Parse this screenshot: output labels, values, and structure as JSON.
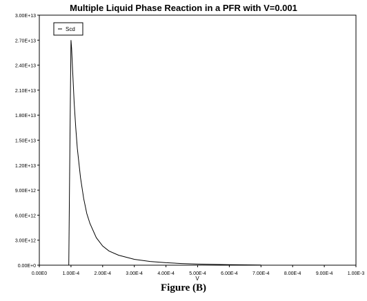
{
  "chart_data": {
    "type": "line",
    "title": "Multiple Liquid Phase Reaction in a PFR with V=0.001",
    "xlabel": "V",
    "ylabel": "",
    "xlim": [
      0,
      0.001
    ],
    "ylim": [
      0,
      30000000000000
    ],
    "x_ticks": [
      "0.00E0",
      "1.00E-4",
      "2.00E-4",
      "3.00E-4",
      "4.00E-4",
      "5.00E-4",
      "6.00E-4",
      "7.00E-4",
      "8.00E-4",
      "9.00E-4",
      "1.00E-3"
    ],
    "y_ticks": [
      "0.00E+0",
      "3.00E+12",
      "6.00E+12",
      "9.00E+12",
      "1.20E+13",
      "1.50E+13",
      "1.80E+13",
      "2.10E+13",
      "2.40E+13",
      "2.70E+13",
      "3.00E+13"
    ],
    "legend": "top-left",
    "grid": false,
    "series": [
      {
        "name": "Scd",
        "color": "#000000",
        "x": [
          9.2e-05,
          9.3e-05,
          9.5e-05,
          9.8e-05,
          0.0001,
          0.000102,
          0.000105,
          0.00011,
          0.000115,
          0.00012,
          0.00013,
          0.00014,
          0.00015,
          0.00016,
          0.00018,
          0.0002,
          0.00022,
          0.00025,
          0.0003,
          0.00035,
          0.0004,
          0.00045,
          0.0005,
          0.0006,
          0.0007
        ],
        "y": [
          0,
          0,
          8000000000000,
          20000000000000,
          27000000000000,
          26000000000000,
          23500000000000,
          19500000000000,
          16500000000000,
          14000000000000,
          10500000000000,
          8000000000000,
          6200000000000,
          5000000000000,
          3300000000000,
          2300000000000,
          1700000000000,
          1200000000000,
          700000000000,
          450000000000,
          300000000000,
          200000000000,
          130000000000,
          60000000000,
          25000000000
        ]
      }
    ]
  },
  "caption": "Figure (B)"
}
